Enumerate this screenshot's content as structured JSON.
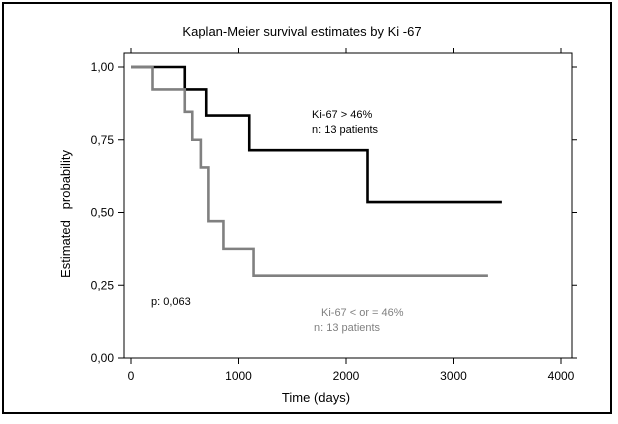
{
  "chart_data": {
    "type": "line",
    "subtype": "step",
    "title": "Kaplan-Meier survival estimates by Ki -67",
    "xlabel": "Time (days)",
    "ylabel": "Estimated   probability",
    "xlim": [
      0,
      4000
    ],
    "ylim": [
      0,
      1
    ],
    "x_ticks": [
      0,
      1000,
      2000,
      3000,
      4000
    ],
    "x_tick_labels": [
      "0",
      "1000",
      "2000",
      "3000",
      "4000"
    ],
    "y_ticks": [
      0,
      0.25,
      0.5,
      0.75,
      1
    ],
    "y_tick_labels": [
      "0,00",
      "0,25",
      "0,50",
      "0,75",
      "1,00"
    ],
    "grid": false,
    "series": [
      {
        "color": "#000000",
        "x": [
          0,
          500,
          700,
          1100,
          2200,
          3450
        ],
        "y": [
          1.0,
          0.923,
          0.833,
          0.714,
          0.536,
          0.536
        ]
      },
      {
        "color": "#808080",
        "x": [
          0,
          200,
          500,
          570,
          650,
          720,
          860,
          1140,
          3320
        ],
        "y": [
          1.0,
          0.923,
          0.846,
          0.75,
          0.655,
          0.47,
          0.375,
          0.283,
          0.283
        ]
      }
    ],
    "annotations": {
      "high_group": "Ki-67 > 46%",
      "high_n": "n: 13 patients",
      "low_group": "Ki-67 < or = 46%",
      "low_n": "n: 13 patients",
      "p_value": "p: 0,063"
    }
  }
}
